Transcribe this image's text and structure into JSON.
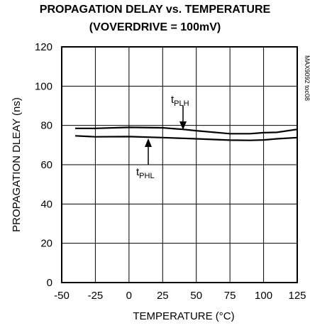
{
  "chart_data": {
    "type": "line",
    "title": "PROPAGATION DELAY vs. TEMPERATURE",
    "subtitle": {
      "open": "(V",
      "sub": "OVERDRIVE",
      "close": " = 100mV)"
    },
    "xlabel": "TEMPERATURE (°C)",
    "ylabel": "PROPAGATION DLEAY (ns)",
    "xlim": [
      -50,
      125
    ],
    "ylim": [
      0,
      120
    ],
    "xticks": [
      -50,
      -25,
      0,
      25,
      50,
      75,
      100,
      125
    ],
    "yticks": [
      0,
      20,
      40,
      60,
      80,
      100,
      120
    ],
    "grid": true,
    "watermark": "MAX9092 toc08",
    "series": [
      {
        "name": "tPLH",
        "label_main": "t",
        "label_sub": "PLH",
        "x": [
          -40,
          -25,
          0,
          25,
          40,
          50,
          75,
          90,
          100,
          110,
          125
        ],
        "y": [
          78.5,
          78.5,
          79,
          78.8,
          78,
          77.3,
          75.8,
          75.8,
          76.3,
          76.5,
          78
        ]
      },
      {
        "name": "tPHL",
        "label_main": "t",
        "label_sub": "PHL",
        "x": [
          -40,
          -25,
          0,
          25,
          50,
          75,
          90,
          100,
          110,
          125
        ],
        "y": [
          74.7,
          74.2,
          74.3,
          73.8,
          73.2,
          72.5,
          72.4,
          72.6,
          73.2,
          73.8
        ]
      }
    ]
  }
}
